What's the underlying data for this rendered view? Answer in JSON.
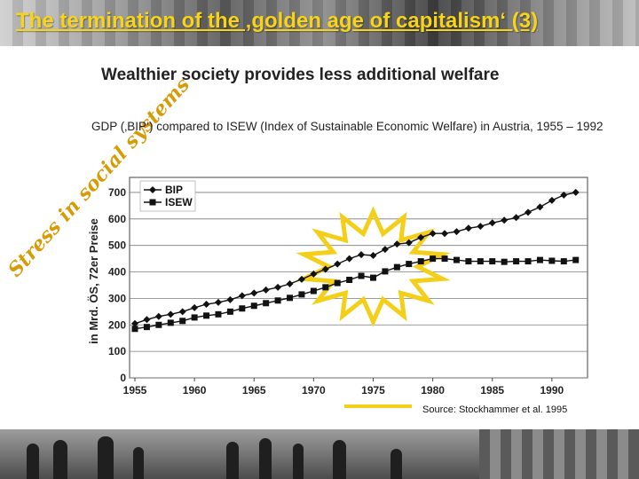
{
  "slide": {
    "title": "The termination of the ‚golden age of capitalism‘ (3)",
    "side_label": "Stress in social systems",
    "subtitle": "Wealthier society provides less additional welfare",
    "description": "GDP (‚BIP‘) compared to ISEW (Index of Sustainable Economic Welfare) in Austria, 1955 – 1992",
    "source": "Source: Stockhammer et al. 1995"
  },
  "chart_data": {
    "type": "line",
    "ylabel": "in Mrd. ÖS, 72er Preise",
    "ylim": [
      0,
      750
    ],
    "xlim": [
      1955,
      1992
    ],
    "yticks": [
      "0",
      "100",
      "200",
      "300",
      "400",
      "500",
      "600",
      "700"
    ],
    "xticks": [
      "1955",
      "1960",
      "1965",
      "1970",
      "1975",
      "1980",
      "1985",
      "1990"
    ],
    "grid": true,
    "legend_position": "top-left",
    "x": [
      1955,
      1956,
      1957,
      1958,
      1959,
      1960,
      1961,
      1962,
      1963,
      1964,
      1965,
      1966,
      1967,
      1968,
      1969,
      1970,
      1971,
      1972,
      1973,
      1974,
      1975,
      1976,
      1977,
      1978,
      1979,
      1980,
      1981,
      1982,
      1983,
      1984,
      1985,
      1986,
      1987,
      1988,
      1989,
      1990,
      1991,
      1992
    ],
    "series": [
      {
        "name": "BIP",
        "marker": "diamond",
        "values": [
          205,
          220,
          232,
          240,
          250,
          265,
          278,
          285,
          295,
          310,
          320,
          332,
          342,
          355,
          372,
          392,
          410,
          430,
          450,
          465,
          462,
          485,
          505,
          510,
          530,
          545,
          545,
          552,
          565,
          572,
          585,
          595,
          605,
          625,
          645,
          670,
          690,
          700
        ]
      },
      {
        "name": "ISEW",
        "marker": "square",
        "values": [
          185,
          192,
          200,
          208,
          215,
          228,
          235,
          240,
          250,
          262,
          272,
          282,
          292,
          302,
          315,
          328,
          342,
          358,
          370,
          385,
          378,
          402,
          418,
          430,
          440,
          450,
          450,
          445,
          440,
          440,
          440,
          438,
          440,
          440,
          445,
          442,
          440,
          445
        ]
      }
    ],
    "highlight": {
      "shape": "starburst",
      "color": "#f3cf19",
      "center": [
        1975,
        420
      ]
    }
  }
}
